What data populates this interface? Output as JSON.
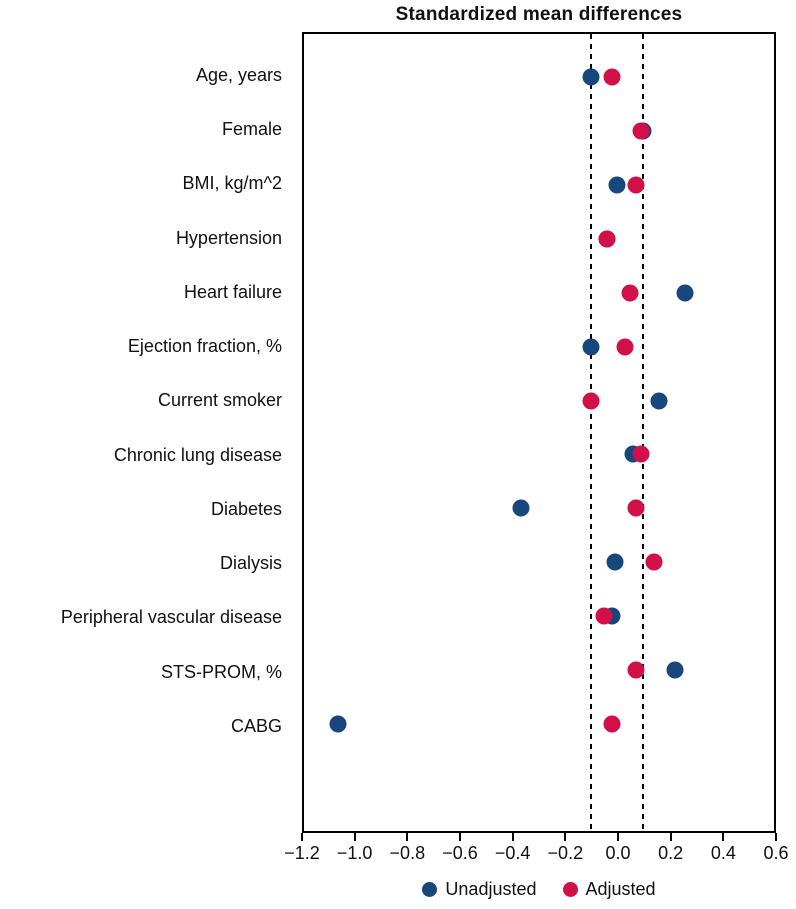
{
  "title": "Standardized mean differences",
  "colors": {
    "unadjusted": "#17477C",
    "adjusted": "#D1104A",
    "frame": "#000000",
    "background": "#FFFFFF",
    "text": "#111111"
  },
  "legend": {
    "items": [
      {
        "label": "Unadjusted",
        "color": "#17477C"
      },
      {
        "label": "Adjusted",
        "color": "#D1104A"
      }
    ]
  },
  "chart_data": {
    "type": "scatter",
    "title": "Standardized mean differences",
    "orientation": "horizontal-dot-plot",
    "categories": [
      "Age, years",
      "Female",
      "BMI, kg/m^2",
      "Hypertension",
      "Heart failure",
      "Ejection fraction, %",
      "Current smoker",
      "Chronic lung disease",
      "Diabetes",
      "Dialysis",
      "Peripheral vascular disease",
      "STS-PROM, %",
      "CABG"
    ],
    "series": [
      {
        "name": "Unadjusted",
        "color": "#17477C",
        "values": [
          -0.1,
          0.1,
          0.0,
          -0.04,
          0.26,
          -0.1,
          0.16,
          0.06,
          -0.37,
          -0.01,
          -0.02,
          0.22,
          -1.07
        ]
      },
      {
        "name": "Adjusted",
        "color": "#D1104A",
        "values": [
          -0.02,
          0.09,
          0.07,
          -0.04,
          0.05,
          0.03,
          -0.1,
          0.09,
          0.07,
          0.14,
          -0.05,
          0.07,
          -0.02
        ]
      }
    ],
    "xlim": [
      -1.2,
      0.6
    ],
    "xticks": [
      -1.2,
      -1.0,
      -0.8,
      -0.6,
      -0.4,
      -0.2,
      0.0,
      0.2,
      0.4,
      0.6
    ],
    "xtick_labels": [
      "−1.2",
      "−1.0",
      "−0.8",
      "−0.6",
      "−0.4",
      "−0.2",
      "0.0",
      "0.2",
      "0.4",
      "0.6"
    ],
    "reference_lines": [
      -0.1,
      0.1
    ],
    "grid": false,
    "legend_position": "bottom"
  }
}
